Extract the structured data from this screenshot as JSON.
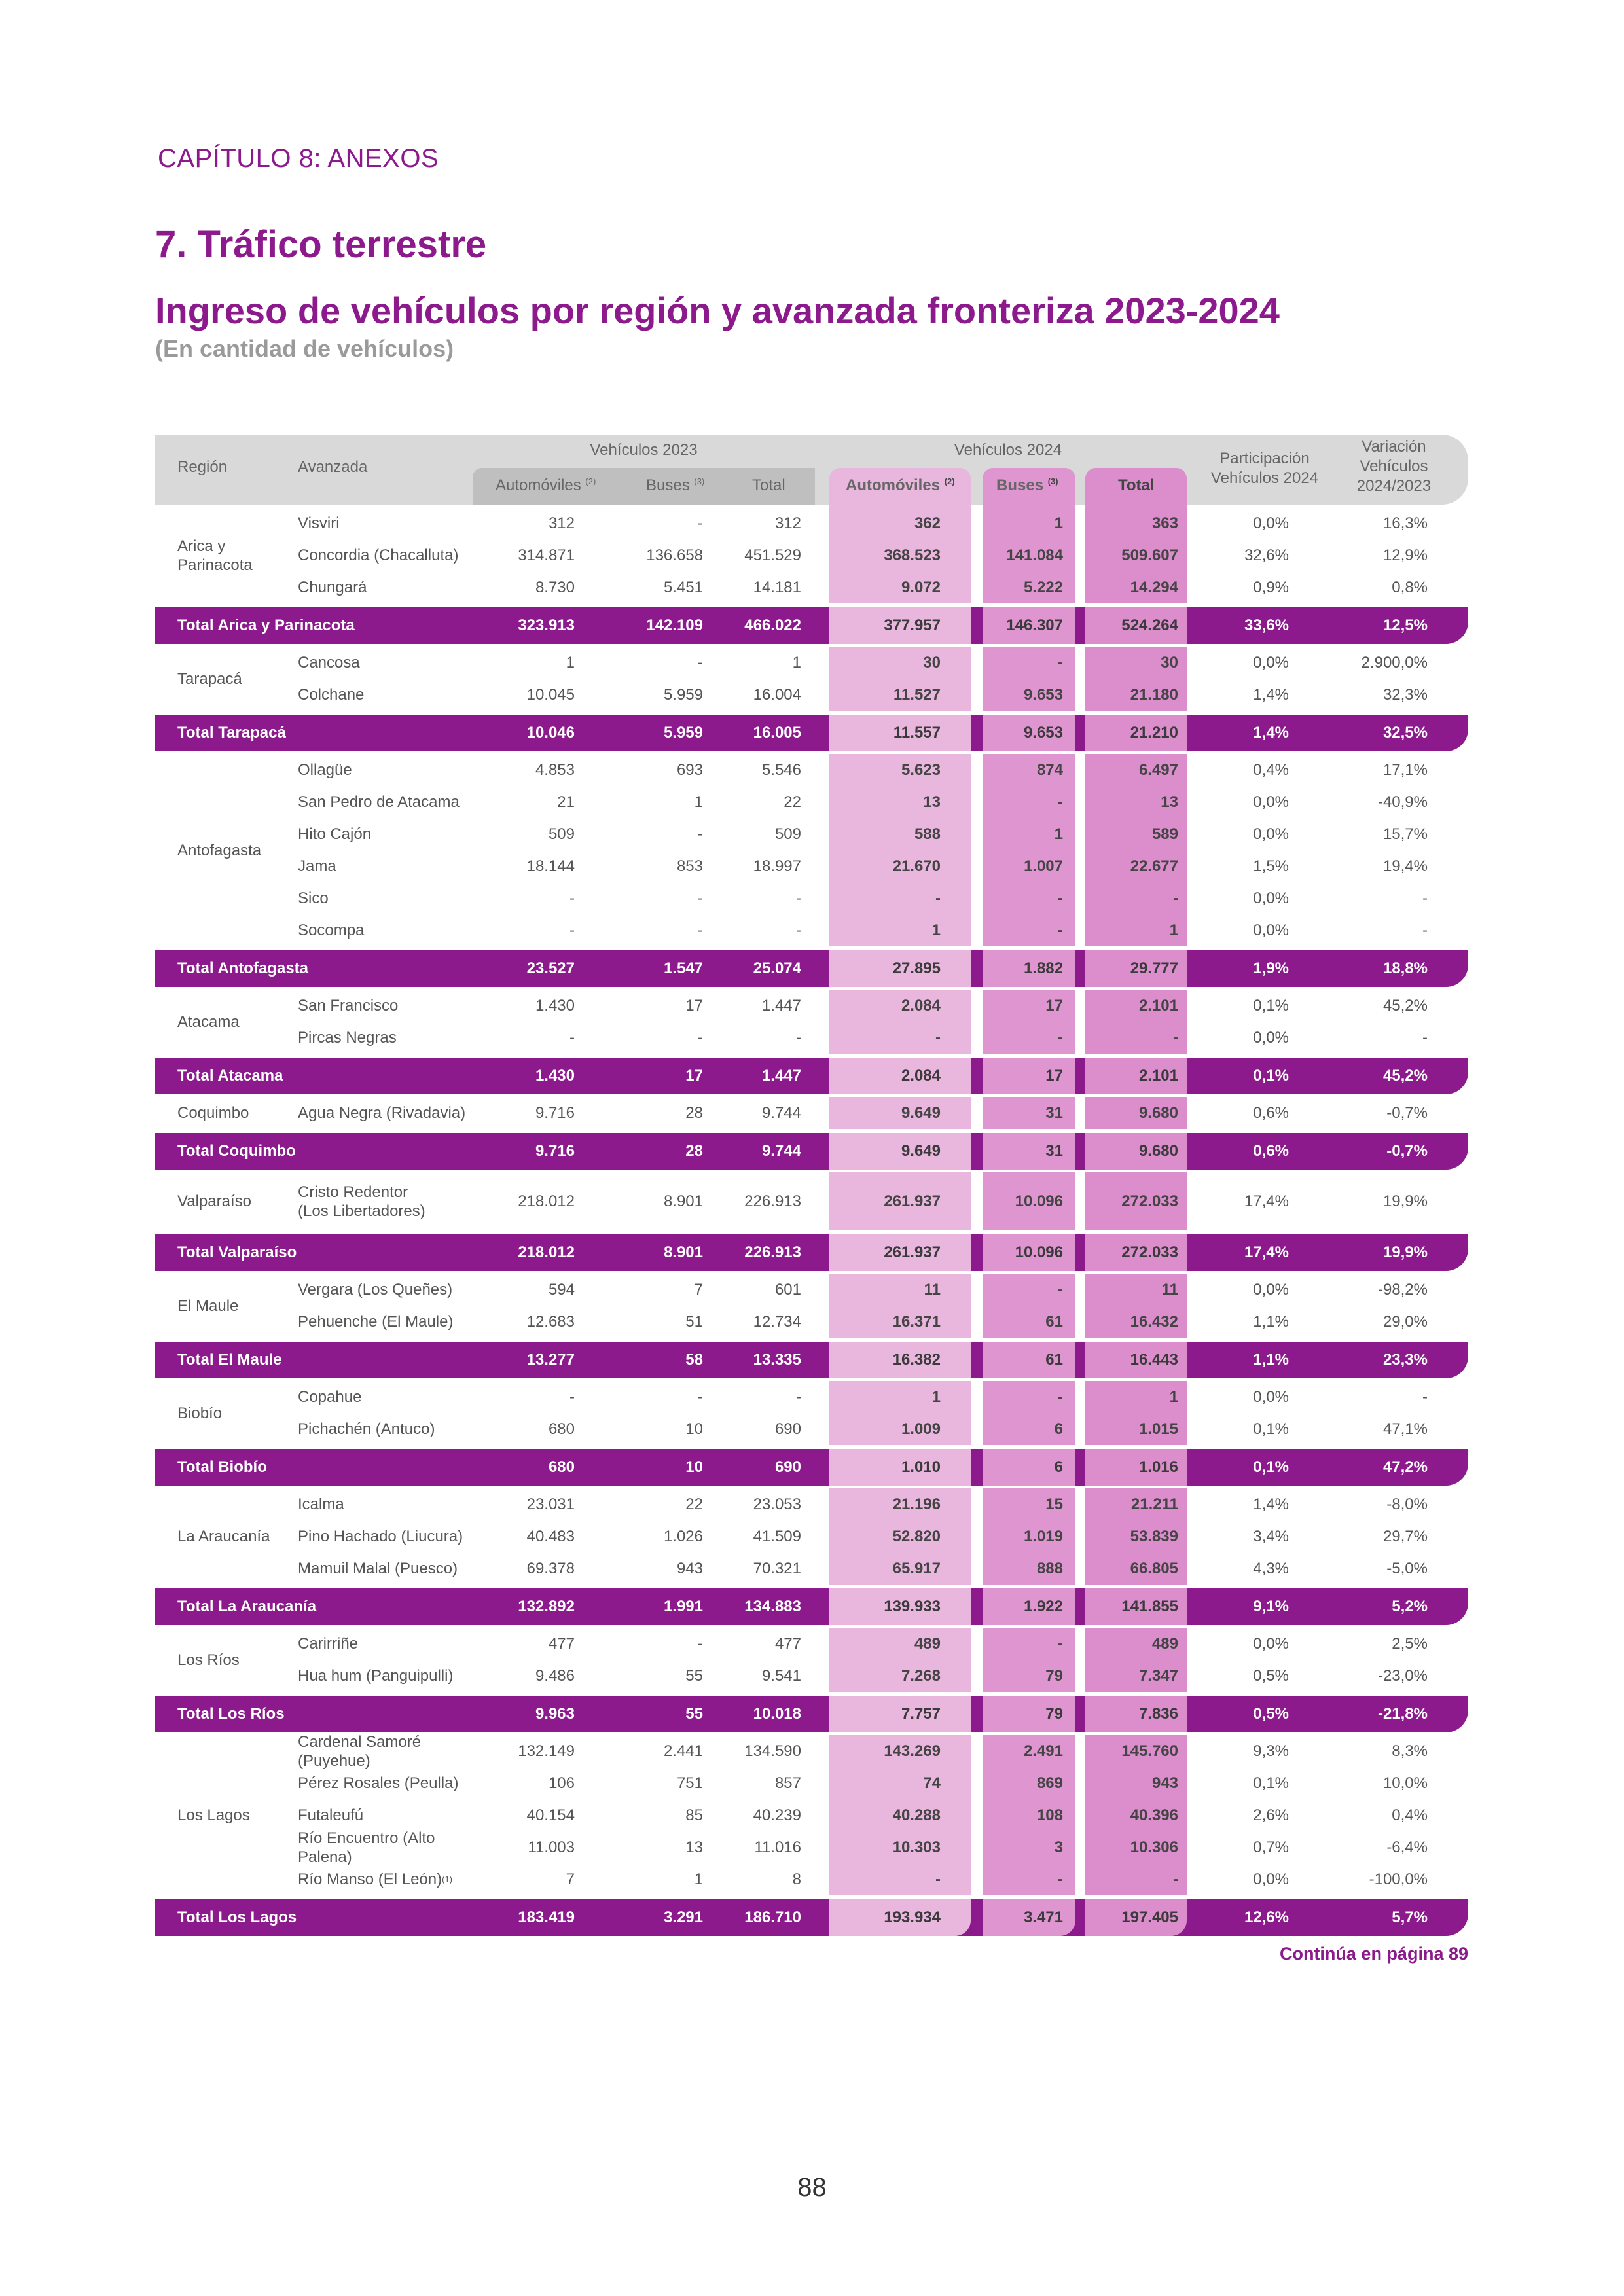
{
  "chapter": "CAPÍTULO 8: ANEXOS",
  "section": "7. Tráfico terrestre",
  "title": "Ingreso de vehículos por región y avanzada fronteriza 2023-2024",
  "unit": "(En cantidad de vehículos)",
  "colors": {
    "purple": "#8c1a8c",
    "pink1": "#e9b7de",
    "pink2": "#df96d0",
    "pink3": "#db8dcc",
    "header_gray": "#d9d9d9"
  },
  "header": {
    "region": "Región",
    "avanzada": "Avanzada",
    "veh2023": "Vehículos 2023",
    "veh2024": "Vehículos 2024",
    "automoviles": "Automóviles",
    "automoviles_note": "(2)",
    "buses": "Buses",
    "buses_note": "(3)",
    "total": "Total",
    "participacion": "Participación Vehículos 2024",
    "variacion": "Variación Vehículos 2024/2023"
  },
  "groups": [
    {
      "region": "Arica y Parinacota",
      "rows": [
        {
          "avanzada": "Visviri",
          "values": [
            "312",
            "-",
            "312",
            "362",
            "1",
            "363",
            "0,0%",
            "16,3%"
          ]
        },
        {
          "avanzada": "Concordia (Chacalluta)",
          "values": [
            "314.871",
            "136.658",
            "451.529",
            "368.523",
            "141.084",
            "509.607",
            "32,6%",
            "12,9%"
          ]
        },
        {
          "avanzada": "Chungará",
          "values": [
            "8.730",
            "5.451",
            "14.181",
            "9.072",
            "5.222",
            "14.294",
            "0,9%",
            "0,8%"
          ]
        }
      ],
      "total": {
        "label": "Total Arica y Parinacota",
        "values": [
          "323.913",
          "142.109",
          "466.022",
          "377.957",
          "146.307",
          "524.264",
          "33,6%",
          "12,5%"
        ]
      }
    },
    {
      "region": "Tarapacá",
      "rows": [
        {
          "avanzada": "Cancosa",
          "values": [
            "1",
            "-",
            "1",
            "30",
            "-",
            "30",
            "0,0%",
            "2.900,0%"
          ]
        },
        {
          "avanzada": "Colchane",
          "values": [
            "10.045",
            "5.959",
            "16.004",
            "11.527",
            "9.653",
            "21.180",
            "1,4%",
            "32,3%"
          ]
        }
      ],
      "total": {
        "label": "Total Tarapacá",
        "values": [
          "10.046",
          "5.959",
          "16.005",
          "11.557",
          "9.653",
          "21.210",
          "1,4%",
          "32,5%"
        ]
      }
    },
    {
      "region": "Antofagasta",
      "rows": [
        {
          "avanzada": "Ollagüe",
          "values": [
            "4.853",
            "693",
            "5.546",
            "5.623",
            "874",
            "6.497",
            "0,4%",
            "17,1%"
          ]
        },
        {
          "avanzada": "San Pedro de Atacama",
          "values": [
            "21",
            "1",
            "22",
            "13",
            "-",
            "13",
            "0,0%",
            "-40,9%"
          ]
        },
        {
          "avanzada": "Hito Cajón",
          "values": [
            "509",
            "-",
            "509",
            "588",
            "1",
            "589",
            "0,0%",
            "15,7%"
          ]
        },
        {
          "avanzada": "Jama",
          "values": [
            "18.144",
            "853",
            "18.997",
            "21.670",
            "1.007",
            "22.677",
            "1,5%",
            "19,4%"
          ]
        },
        {
          "avanzada": "Sico",
          "values": [
            "-",
            "-",
            "-",
            "-",
            "-",
            "-",
            "0,0%",
            "-"
          ]
        },
        {
          "avanzada": "Socompa",
          "values": [
            "-",
            "-",
            "-",
            "1",
            "-",
            "1",
            "0,0%",
            "-"
          ]
        }
      ],
      "total": {
        "label": "Total Antofagasta",
        "values": [
          "23.527",
          "1.547",
          "25.074",
          "27.895",
          "1.882",
          "29.777",
          "1,9%",
          "18,8%"
        ]
      }
    },
    {
      "region": "Atacama",
      "rows": [
        {
          "avanzada": "San Francisco",
          "values": [
            "1.430",
            "17",
            "1.447",
            "2.084",
            "17",
            "2.101",
            "0,1%",
            "45,2%"
          ]
        },
        {
          "avanzada": "Pircas Negras",
          "values": [
            "-",
            "-",
            "-",
            "-",
            "-",
            "-",
            "0,0%",
            "-"
          ]
        }
      ],
      "total": {
        "label": "Total Atacama",
        "values": [
          "1.430",
          "17",
          "1.447",
          "2.084",
          "17",
          "2.101",
          "0,1%",
          "45,2%"
        ]
      }
    },
    {
      "region": "Coquimbo",
      "rows": [
        {
          "avanzada": "Agua Negra (Rivadavia)",
          "values": [
            "9.716",
            "28",
            "9.744",
            "9.649",
            "31",
            "9.680",
            "0,6%",
            "-0,7%"
          ]
        }
      ],
      "total": {
        "label": "Total Coquimbo",
        "values": [
          "9.716",
          "28",
          "9.744",
          "9.649",
          "31",
          "9.680",
          "0,6%",
          "-0,7%"
        ]
      }
    },
    {
      "region": "Valparaíso",
      "rows": [
        {
          "avanzada": "Cristo Redentor (Los Libertadores)",
          "tall": true,
          "values": [
            "218.012",
            "8.901",
            "226.913",
            "261.937",
            "10.096",
            "272.033",
            "17,4%",
            "19,9%"
          ]
        }
      ],
      "total": {
        "label": "Total Valparaíso",
        "values": [
          "218.012",
          "8.901",
          "226.913",
          "261.937",
          "10.096",
          "272.033",
          "17,4%",
          "19,9%"
        ]
      }
    },
    {
      "region": "El Maule",
      "rows": [
        {
          "avanzada": "Vergara (Los Queñes)",
          "values": [
            "594",
            "7",
            "601",
            "11",
            "-",
            "11",
            "0,0%",
            "-98,2%"
          ]
        },
        {
          "avanzada": "Pehuenche (El Maule)",
          "values": [
            "12.683",
            "51",
            "12.734",
            "16.371",
            "61",
            "16.432",
            "1,1%",
            "29,0%"
          ]
        }
      ],
      "total": {
        "label": "Total El Maule",
        "values": [
          "13.277",
          "58",
          "13.335",
          "16.382",
          "61",
          "16.443",
          "1,1%",
          "23,3%"
        ]
      }
    },
    {
      "region": "Biobío",
      "rows": [
        {
          "avanzada": "Copahue",
          "values": [
            "-",
            "-",
            "-",
            "1",
            "-",
            "1",
            "0,0%",
            "-"
          ]
        },
        {
          "avanzada": "Pichachén (Antuco)",
          "values": [
            "680",
            "10",
            "690",
            "1.009",
            "6",
            "1.015",
            "0,1%",
            "47,1%"
          ]
        }
      ],
      "total": {
        "label": "Total Biobío",
        "values": [
          "680",
          "10",
          "690",
          "1.010",
          "6",
          "1.016",
          "0,1%",
          "47,2%"
        ]
      }
    },
    {
      "region": "La Araucanía",
      "rows": [
        {
          "avanzada": "Icalma",
          "values": [
            "23.031",
            "22",
            "23.053",
            "21.196",
            "15",
            "21.211",
            "1,4%",
            "-8,0%"
          ]
        },
        {
          "avanzada": "Pino Hachado (Liucura)",
          "values": [
            "40.483",
            "1.026",
            "41.509",
            "52.820",
            "1.019",
            "53.839",
            "3,4%",
            "29,7%"
          ]
        },
        {
          "avanzada": "Mamuil Malal (Puesco)",
          "values": [
            "69.378",
            "943",
            "70.321",
            "65.917",
            "888",
            "66.805",
            "4,3%",
            "-5,0%"
          ]
        }
      ],
      "total": {
        "label": "Total La Araucanía",
        "values": [
          "132.892",
          "1.991",
          "134.883",
          "139.933",
          "1.922",
          "141.855",
          "9,1%",
          "5,2%"
        ]
      }
    },
    {
      "region": "Los Ríos",
      "rows": [
        {
          "avanzada": "Carirriñe",
          "values": [
            "477",
            "-",
            "477",
            "489",
            "-",
            "489",
            "0,0%",
            "2,5%"
          ]
        },
        {
          "avanzada": "Hua hum (Panguipulli)",
          "values": [
            "9.486",
            "55",
            "9.541",
            "7.268",
            "79",
            "7.347",
            "0,5%",
            "-23,0%"
          ]
        }
      ],
      "total": {
        "label": "Total Los Ríos",
        "values": [
          "9.963",
          "55",
          "10.018",
          "7.757",
          "79",
          "7.836",
          "0,5%",
          "-21,8%"
        ]
      }
    },
    {
      "region": "Los Lagos",
      "rows": [
        {
          "avanzada": "Cardenal Samoré (Puyehue)",
          "values": [
            "132.149",
            "2.441",
            "134.590",
            "143.269",
            "2.491",
            "145.760",
            "9,3%",
            "8,3%"
          ]
        },
        {
          "avanzada": "Pérez Rosales (Peulla)",
          "values": [
            "106",
            "751",
            "857",
            "74",
            "869",
            "943",
            "0,1%",
            "10,0%"
          ]
        },
        {
          "avanzada": "Futaleufú",
          "values": [
            "40.154",
            "85",
            "40.239",
            "40.288",
            "108",
            "40.396",
            "2,6%",
            "0,4%"
          ]
        },
        {
          "avanzada": "Río Encuentro (Alto Palena)",
          "values": [
            "11.003",
            "13",
            "11.016",
            "10.303",
            "3",
            "10.306",
            "0,7%",
            "-6,4%"
          ]
        },
        {
          "avanzada": "Río Manso (El León)",
          "note": "(1)",
          "values": [
            "7",
            "1",
            "8",
            "-",
            "-",
            "-",
            "0,0%",
            "-100,0%"
          ]
        }
      ],
      "total": {
        "label": "Total Los Lagos",
        "values": [
          "183.419",
          "3.291",
          "186.710",
          "193.934",
          "3.471",
          "197.405",
          "12,6%",
          "5,7%"
        ]
      }
    }
  ],
  "continues": "Continúa en página 89",
  "page_number": "88"
}
